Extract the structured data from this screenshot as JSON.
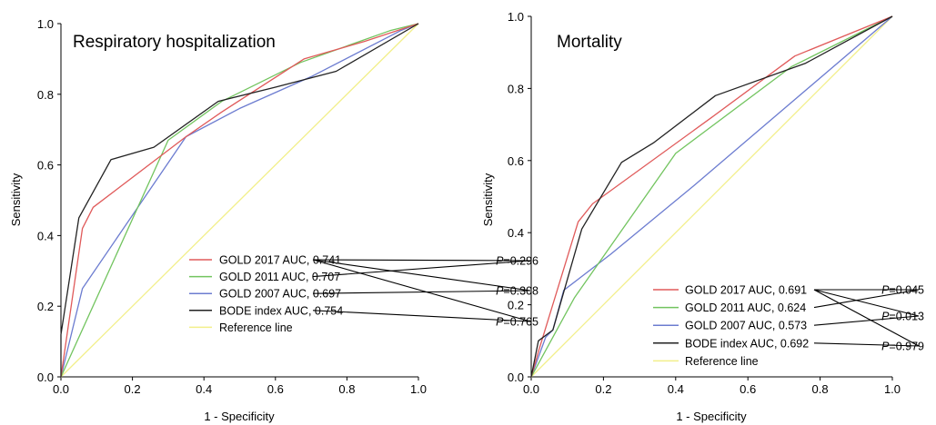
{
  "chart_data": [
    {
      "type": "line",
      "title": "Respiratory hospitalization",
      "xlabel": "1 - Specificity",
      "ylabel": "Sensitivity",
      "xlim": [
        0,
        1
      ],
      "ylim": [
        0,
        1
      ],
      "xticks": [
        "0.0",
        "0.2",
        "0.4",
        "0.6",
        "0.8",
        "1.0"
      ],
      "yticks": [
        "0.0",
        "0.2",
        "0.4",
        "0.6",
        "0.8",
        "1.0"
      ],
      "legend_position": "bottom-right",
      "series": [
        {
          "name": "GOLD 2017 AUC, 0.741",
          "color": "#e05a5a",
          "points": [
            [
              0,
              0
            ],
            [
              0.06,
              0.42
            ],
            [
              0.09,
              0.48
            ],
            [
              0.35,
              0.68
            ],
            [
              0.45,
              0.75
            ],
            [
              0.68,
              0.9
            ],
            [
              0.85,
              0.95
            ],
            [
              1,
              1
            ]
          ]
        },
        {
          "name": "GOLD 2011 AUC, 0.707",
          "color": "#72c45f",
          "points": [
            [
              0,
              0
            ],
            [
              0.3,
              0.67
            ],
            [
              0.45,
              0.78
            ],
            [
              0.67,
              0.89
            ],
            [
              0.92,
              0.98
            ],
            [
              1,
              1
            ]
          ]
        },
        {
          "name": "GOLD 2007 AUC, 0.697",
          "color": "#6c7cd0",
          "points": [
            [
              0,
              0
            ],
            [
              0.06,
              0.25
            ],
            [
              0.35,
              0.68
            ],
            [
              0.5,
              0.76
            ],
            [
              0.7,
              0.85
            ],
            [
              0.95,
              0.98
            ],
            [
              1,
              1
            ]
          ]
        },
        {
          "name": "BODE index AUC, 0.754",
          "color": "#222222",
          "points": [
            [
              0,
              0
            ],
            [
              0,
              0.12
            ],
            [
              0.05,
              0.45
            ],
            [
              0.14,
              0.615
            ],
            [
              0.26,
              0.65
            ],
            [
              0.44,
              0.78
            ],
            [
              0.6,
              0.82
            ],
            [
              0.77,
              0.865
            ],
            [
              1,
              1
            ]
          ]
        },
        {
          "name": "Reference line",
          "color": "#f2ef8a",
          "points": [
            [
              0,
              0
            ],
            [
              1,
              1
            ]
          ]
        }
      ],
      "p_values": [
        "0.296",
        "0.308",
        "0.765"
      ],
      "p_label": "P"
    },
    {
      "type": "line",
      "title": "Mortality",
      "xlabel": "1 - Specificity",
      "ylabel": "Sensitivity",
      "xlim": [
        0,
        1
      ],
      "ylim": [
        0,
        1
      ],
      "xticks": [
        "0.0",
        "0.2",
        "0.4",
        "0.6",
        "0.8",
        "1.0"
      ],
      "yticks": [
        "0.0",
        "0.2",
        "0.4",
        "0.6",
        "0.8",
        "1.0"
      ],
      "legend_position": "bottom-right",
      "series": [
        {
          "name": "GOLD 2017 AUC, 0.691",
          "color": "#e05a5a",
          "points": [
            [
              0,
              0
            ],
            [
              0.02,
              0.07
            ],
            [
              0.13,
              0.43
            ],
            [
              0.17,
              0.48
            ],
            [
              0.5,
              0.72
            ],
            [
              0.73,
              0.89
            ],
            [
              1,
              1
            ]
          ]
        },
        {
          "name": "GOLD 2011 AUC, 0.624",
          "color": "#72c45f",
          "points": [
            [
              0,
              0
            ],
            [
              0.12,
              0.22
            ],
            [
              0.4,
              0.62
            ],
            [
              0.48,
              0.68
            ],
            [
              0.72,
              0.86
            ],
            [
              1,
              1
            ]
          ]
        },
        {
          "name": "GOLD 2007 AUC, 0.573",
          "color": "#6c7cd0",
          "points": [
            [
              0,
              0
            ],
            [
              0.04,
              0.11
            ],
            [
              0.06,
              0.13
            ],
            [
              0.09,
              0.24
            ],
            [
              0.22,
              0.34
            ],
            [
              0.45,
              0.53
            ],
            [
              1,
              1
            ]
          ]
        },
        {
          "name": "BODE index AUC, 0.692",
          "color": "#222222",
          "points": [
            [
              0,
              0
            ],
            [
              0.02,
              0.1
            ],
            [
              0.06,
              0.13
            ],
            [
              0.14,
              0.41
            ],
            [
              0.25,
              0.595
            ],
            [
              0.34,
              0.65
            ],
            [
              0.51,
              0.78
            ],
            [
              0.76,
              0.87
            ],
            [
              1,
              1
            ]
          ]
        },
        {
          "name": "Reference line",
          "color": "#f2ef8a",
          "points": [
            [
              0,
              0
            ],
            [
              1,
              1
            ]
          ]
        }
      ],
      "p_values": [
        "0.045",
        "0.013",
        "0.979"
      ],
      "p_label": "P"
    }
  ]
}
